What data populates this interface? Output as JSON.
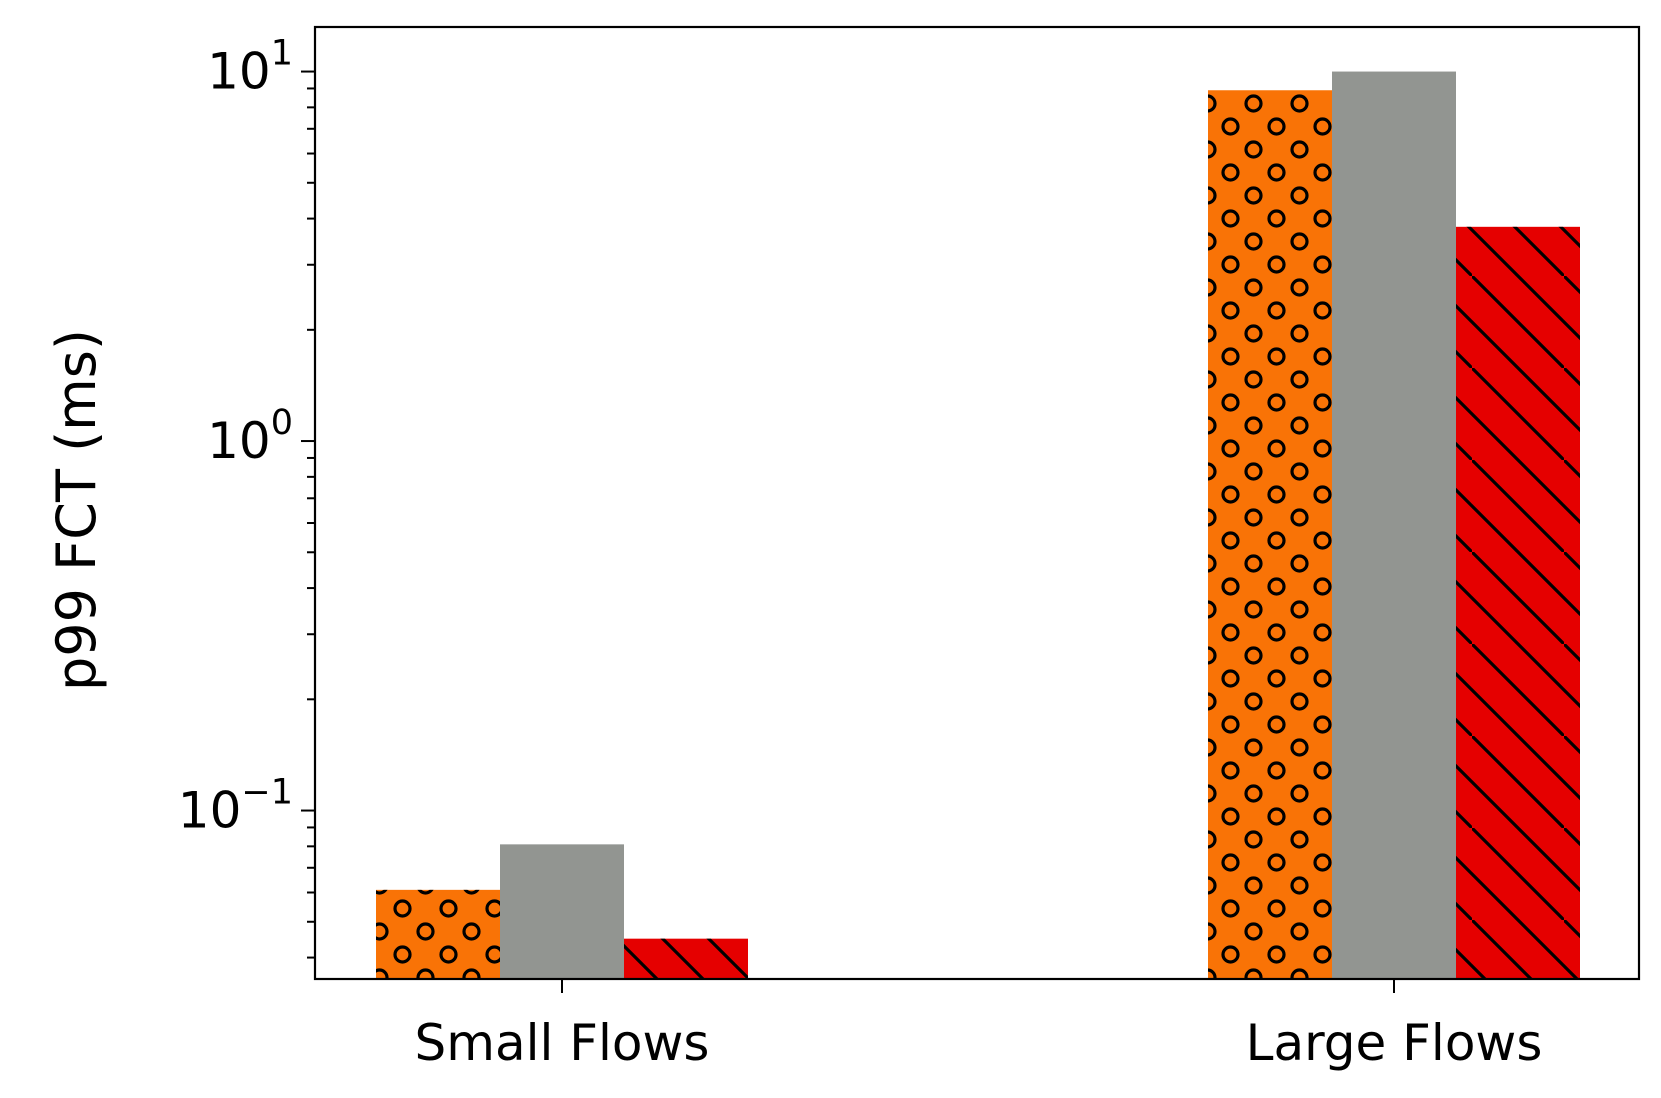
{
  "chart_data": {
    "type": "bar",
    "scale": "log",
    "title": "",
    "xlabel": "",
    "ylabel": "p99 FCT (ms)",
    "categories": [
      "Small Flows",
      "Large Flows"
    ],
    "ylim": [
      0.035,
      13.2
    ],
    "ytick_labels": [
      {
        "value": 0.1,
        "base": "10",
        "exp": "−1"
      },
      {
        "value": 1,
        "base": "10",
        "exp": "0"
      },
      {
        "value": 10,
        "base": "10",
        "exp": "1"
      }
    ],
    "grid": false,
    "legend": "none",
    "series": [
      {
        "color": "#f97306",
        "pattern": "circles",
        "values": [
          0.061,
          8.9
        ]
      },
      {
        "color": "#929591",
        "pattern": "none",
        "values": [
          0.081,
          10.0
        ]
      },
      {
        "color": "#e50000",
        "pattern": "diagonal-lines",
        "values": [
          0.045,
          3.8
        ]
      }
    ]
  }
}
